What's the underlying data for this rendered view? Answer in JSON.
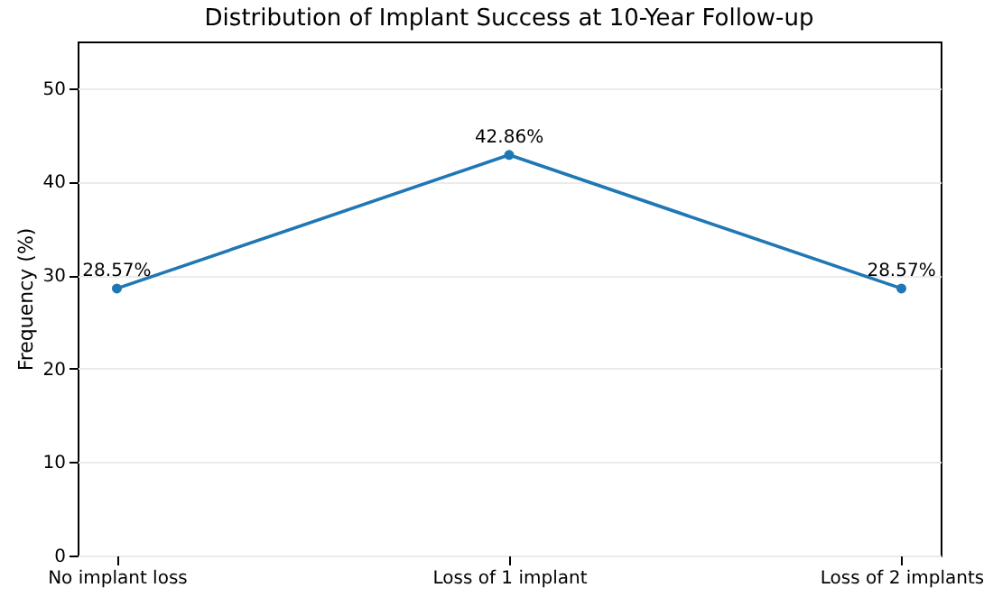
{
  "chart_data": {
    "type": "line",
    "title": "Distribution of Implant Success at 10-Year Follow-up",
    "ylabel": "Frequency (%)",
    "categories": [
      "No implant loss",
      "Loss of 1 implant",
      "Loss of 2 implants"
    ],
    "series": [
      {
        "color": "#1f77b4",
        "values": [
          28.57,
          42.86,
          28.57
        ],
        "value_labels": [
          "28.57%",
          "42.86%",
          "28.57%"
        ]
      }
    ],
    "ylim": [
      0,
      55
    ],
    "yticks": [
      0,
      10,
      20,
      30,
      40,
      50
    ],
    "grid": "y",
    "marker": "circle",
    "line_style": "solid",
    "legend": false
  }
}
